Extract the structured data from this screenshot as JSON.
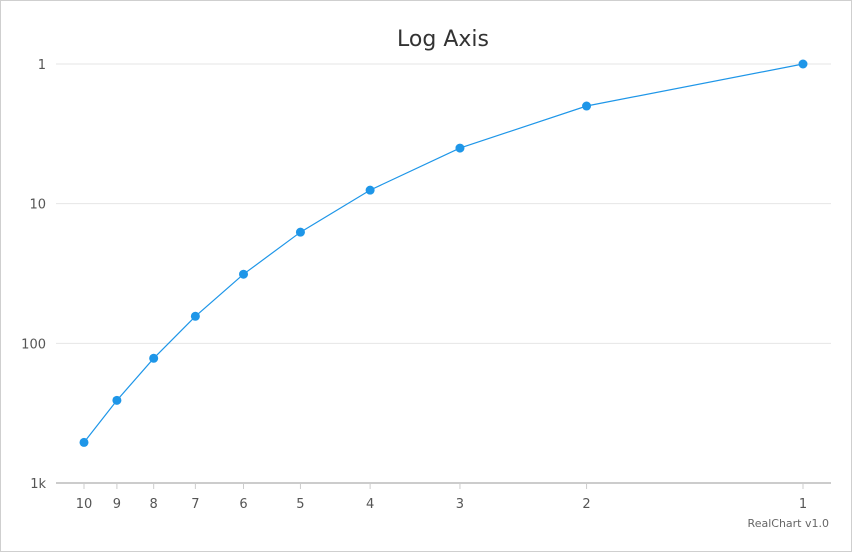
{
  "chart_data": {
    "type": "line",
    "title": "Log Axis",
    "credit": "RealChart v1.0",
    "x": [
      10,
      9,
      8,
      7,
      6,
      5,
      4,
      3,
      2,
      1
    ],
    "x_scale": "log",
    "x_reversed": true,
    "xlim": [
      10,
      1
    ],
    "xticks": [
      "10",
      "9",
      "8",
      "7",
      "6",
      "5",
      "4",
      "3",
      "2",
      "1"
    ],
    "y_scale": "log",
    "y_reversed": true,
    "ylim": [
      1,
      1000
    ],
    "yticks": [
      "1",
      "10",
      "100",
      "1k"
    ],
    "grid": true,
    "series": [
      {
        "values": [
          512,
          256,
          128,
          64,
          32,
          16,
          8,
          4,
          2,
          1
        ],
        "color": "#1e96e8"
      }
    ]
  }
}
